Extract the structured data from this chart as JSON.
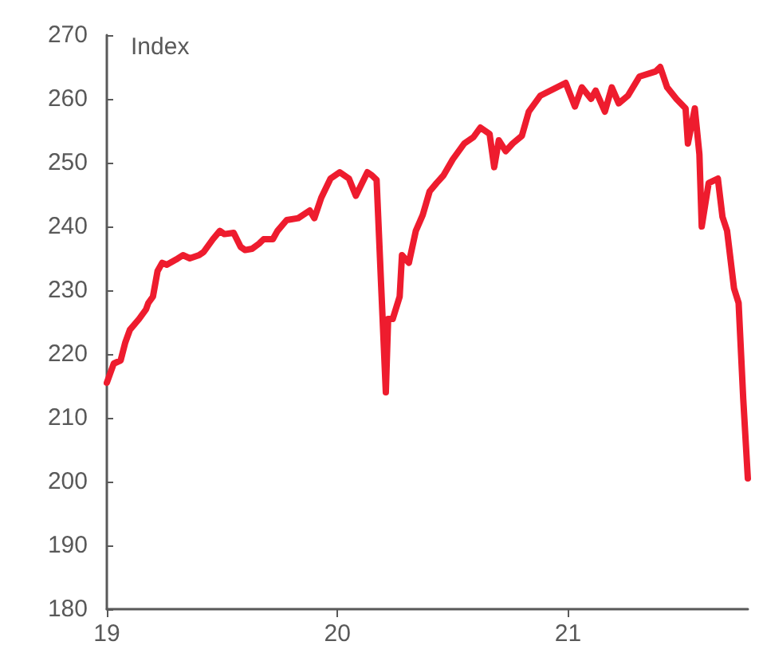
{
  "chart_data": {
    "type": "line",
    "ylabel": "Index",
    "xlim": [
      2019,
      2021.78
    ],
    "xticks": [
      {
        "value": 2019,
        "label": "19"
      },
      {
        "value": 2020,
        "label": "20"
      },
      {
        "value": 2021,
        "label": "21"
      }
    ],
    "ylim": [
      180,
      270
    ],
    "yticks": [
      180,
      190,
      200,
      210,
      220,
      230,
      240,
      250,
      260,
      270
    ],
    "grid": false,
    "marker": "none",
    "line_style": "solid",
    "series": [
      {
        "color": "#ee1c2e",
        "x": [
          2019.0,
          2019.03,
          2019.06,
          2019.08,
          2019.1,
          2019.14,
          2019.17,
          2019.18,
          2019.2,
          2019.22,
          2019.24,
          2019.26,
          2019.3,
          2019.33,
          2019.36,
          2019.4,
          2019.42,
          2019.46,
          2019.49,
          2019.51,
          2019.55,
          2019.58,
          2019.6,
          2019.63,
          2019.66,
          2019.68,
          2019.72,
          2019.74,
          2019.78,
          2019.83,
          2019.88,
          2019.9,
          2019.93,
          2019.97,
          2020.01,
          2020.05,
          2020.08,
          2020.13,
          2020.15,
          2020.17,
          2020.19,
          2020.21,
          2020.22,
          2020.24,
          2020.27,
          2020.28,
          2020.31,
          2020.34,
          2020.37,
          2020.4,
          2020.43,
          2020.46,
          2020.5,
          2020.55,
          2020.59,
          2020.62,
          2020.66,
          2020.68,
          2020.7,
          2020.73,
          2020.76,
          2020.8,
          2020.83,
          2020.88,
          2020.99,
          2021.03,
          2021.06,
          2021.1,
          2021.12,
          2021.16,
          2021.19,
          2021.22,
          2021.26,
          2021.31,
          2021.38,
          2021.4,
          2021.43,
          2021.47,
          2021.51,
          2021.52,
          2021.55,
          2021.57,
          2021.58,
          2021.61,
          2021.65,
          2021.67,
          2021.69,
          2021.72,
          2021.74,
          2021.76,
          2021.78
        ],
        "values": [
          215.5,
          218.5,
          219,
          221.8,
          223.8,
          225.5,
          227,
          228,
          229,
          233,
          234.3,
          234,
          234.8,
          235.5,
          235,
          235.5,
          236,
          238,
          239.3,
          238.8,
          239,
          236.8,
          236.3,
          236.5,
          237.3,
          238,
          238,
          239.3,
          241,
          241.3,
          242.5,
          241.3,
          244.5,
          247.5,
          248.5,
          247.5,
          244.8,
          248.5,
          248,
          247.3,
          230.5,
          214,
          225.5,
          225.5,
          229,
          235.5,
          234.3,
          239.3,
          241.8,
          245.5,
          246.8,
          248,
          250.5,
          253,
          254,
          255.5,
          254.5,
          249.3,
          253.5,
          251.8,
          253,
          254.2,
          258,
          260.5,
          262.5,
          258.8,
          261.8,
          260,
          261.3,
          258,
          261.8,
          259.3,
          260.5,
          263.5,
          264.3,
          265,
          261.8,
          260,
          258.5,
          253,
          258.5,
          251.3,
          240,
          246.8,
          247.5,
          241.5,
          239.3,
          230.3,
          228,
          213,
          200.5
        ]
      }
    ]
  }
}
